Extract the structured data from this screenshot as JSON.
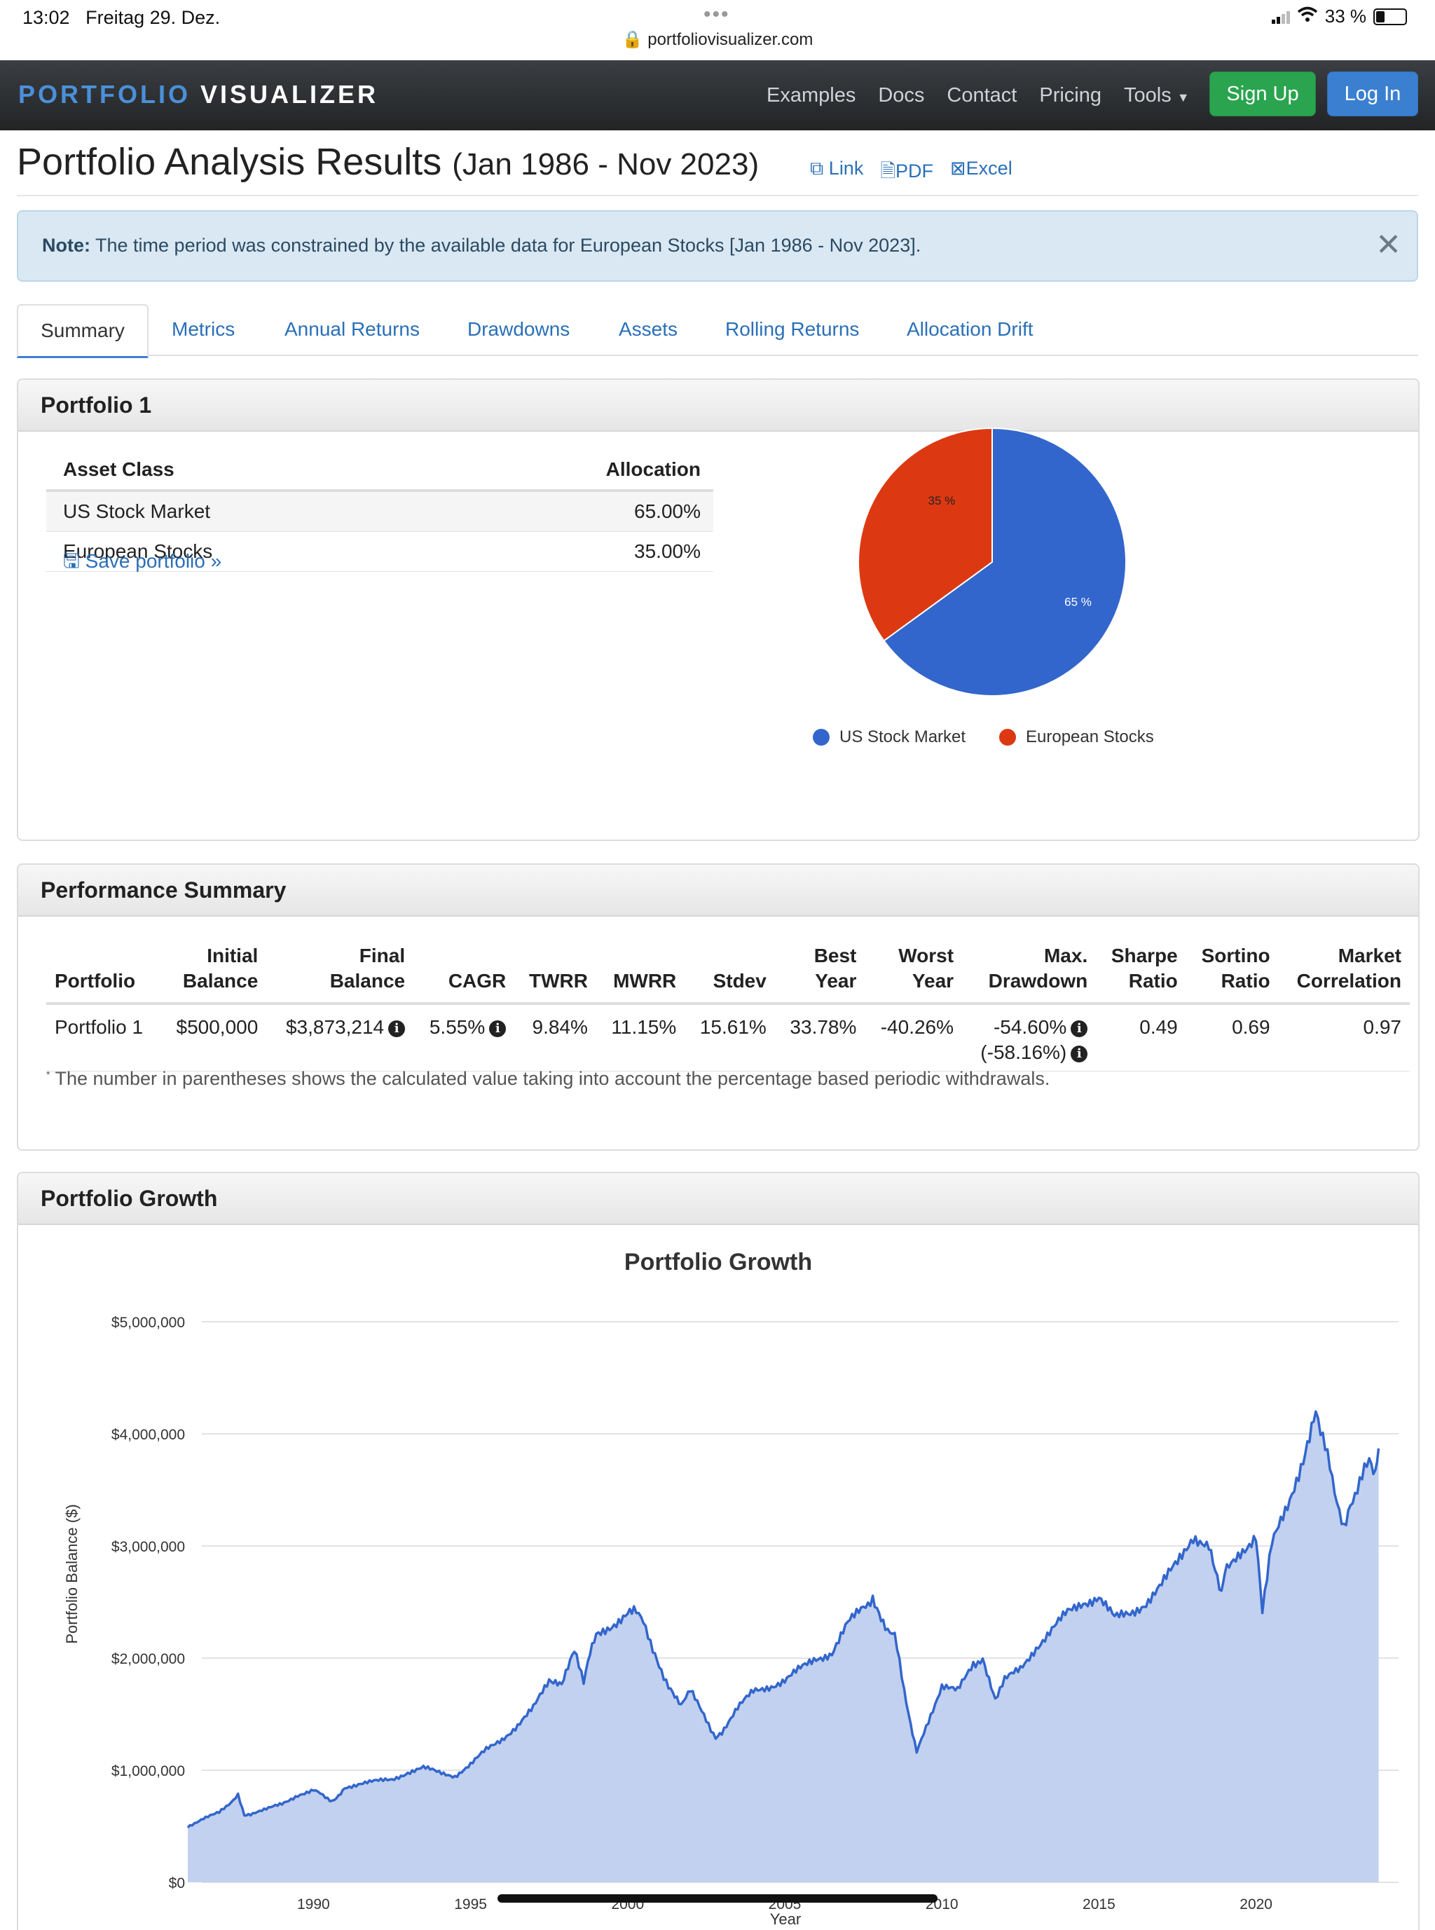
{
  "status": {
    "time": "13:02",
    "date": "Freitag 29. Dez.",
    "url": "portfoliovisualizer.com",
    "battery": "33 %"
  },
  "nav": {
    "brand_a": "PORTFOLIO",
    "brand_b": "VISUALIZER",
    "links": [
      "Examples",
      "Docs",
      "Contact",
      "Pricing",
      "Tools"
    ],
    "signup": "Sign Up",
    "login": "Log In"
  },
  "page": {
    "title": "Portfolio Analysis Results",
    "range": "(Jan 1986 - Nov 2023)",
    "links": [
      "Link",
      "PDF",
      "Excel"
    ]
  },
  "note": {
    "label": "Note:",
    "text": "The time period was constrained by the available data for European Stocks [Jan 1986 - Nov 2023]."
  },
  "tabs": [
    "Summary",
    "Metrics",
    "Annual Returns",
    "Drawdowns",
    "Assets",
    "Rolling Returns",
    "Allocation Drift"
  ],
  "portfolio": {
    "heading": "Portfolio 1",
    "col_asset": "Asset Class",
    "col_alloc": "Allocation",
    "rows": [
      {
        "asset": "US Stock Market",
        "alloc": "65.00%"
      },
      {
        "asset": "European Stocks",
        "alloc": "35.00%"
      }
    ],
    "save": "Save portfolio »",
    "pie": {
      "type": "pie",
      "slices": [
        {
          "label": "US Stock Market",
          "value": 65,
          "text": "65 %",
          "color": "#3366cc"
        },
        {
          "label": "European Stocks",
          "value": 35,
          "text": "35 %",
          "color": "#dc3912"
        }
      ]
    }
  },
  "performance": {
    "heading": "Performance Summary",
    "headers": [
      [
        "Portfolio"
      ],
      [
        "Initial",
        "Balance"
      ],
      [
        "Final",
        "Balance"
      ],
      [
        "CAGR"
      ],
      [
        "TWRR"
      ],
      [
        "MWRR"
      ],
      [
        "Stdev"
      ],
      [
        "Best",
        "Year"
      ],
      [
        "Worst",
        "Year"
      ],
      [
        "Max.",
        "Drawdown"
      ],
      [
        "Sharpe",
        "Ratio"
      ],
      [
        "Sortino",
        "Ratio"
      ],
      [
        "Market",
        "Correlation"
      ]
    ],
    "row": {
      "portfolio": "Portfolio 1",
      "initial": "$500,000",
      "final": "$3,873,214",
      "cagr": "5.55%",
      "twrr": "9.84%",
      "mwrr": "11.15%",
      "stdev": "15.61%",
      "best": "33.78%",
      "worst": "-40.26%",
      "maxdd": "-54.60%",
      "maxdd2": "(-58.16%)",
      "sharpe": "0.49",
      "sortino": "0.69",
      "corr": "0.97"
    },
    "footnote_mark": "*",
    "footnote": "The number in parentheses shows the calculated value taking into account the percentage based periodic withdrawals."
  },
  "growth": {
    "heading": "Portfolio Growth",
    "chart_data": {
      "type": "area",
      "title": "Portfolio Growth",
      "ylabel": "Portfolio Balance ($)",
      "xlabel": "Year",
      "ylim": [
        0,
        5000000
      ],
      "xlim": [
        1986.0,
        2024.0
      ],
      "yticks": [
        "$0",
        "$1,000,000",
        "$2,000,000",
        "$3,000,000",
        "$4,000,000",
        "$5,000,000"
      ],
      "xticks": [
        "1990",
        "1995",
        "2000",
        "2005",
        "2010",
        "2015",
        "2020"
      ],
      "color": "#3366cc",
      "fill": "#c2d1ef",
      "x": [
        1986.0,
        1986.5,
        1987.0,
        1987.6,
        1987.8,
        1988.0,
        1988.5,
        1989.0,
        1989.5,
        1990.0,
        1990.6,
        1990.8,
        1991.0,
        1991.5,
        1992.0,
        1992.5,
        1993.0,
        1993.5,
        1994.0,
        1994.5,
        1995.0,
        1995.5,
        1996.0,
        1996.5,
        1997.0,
        1997.5,
        1997.9,
        1998.3,
        1998.6,
        1998.8,
        1999.0,
        1999.5,
        2000.0,
        2000.2,
        2000.5,
        2000.8,
        2001.0,
        2001.3,
        2001.7,
        2002.0,
        2002.5,
        2002.8,
        2003.0,
        2003.5,
        2004.0,
        2004.5,
        2005.0,
        2005.5,
        2006.0,
        2006.5,
        2007.0,
        2007.5,
        2007.8,
        2008.2,
        2008.5,
        2008.8,
        2009.0,
        2009.2,
        2009.5,
        2010.0,
        2010.5,
        2011.0,
        2011.3,
        2011.7,
        2012.0,
        2012.5,
        2013.0,
        2013.5,
        2014.0,
        2014.5,
        2015.0,
        2015.5,
        2016.0,
        2016.5,
        2017.0,
        2017.5,
        2018.0,
        2018.5,
        2018.9,
        2019.0,
        2019.5,
        2020.0,
        2020.2,
        2020.5,
        2021.0,
        2021.5,
        2021.9,
        2022.2,
        2022.5,
        2022.8,
        2023.0,
        2023.3,
        2023.6,
        2023.8,
        2023.9
      ],
      "y": [
        500000,
        570000,
        620000,
        780000,
        600000,
        610000,
        650000,
        700000,
        780000,
        820000,
        730000,
        780000,
        850000,
        880000,
        900000,
        920000,
        980000,
        1020000,
        980000,
        950000,
        1050000,
        1180000,
        1280000,
        1400000,
        1550000,
        1800000,
        1750000,
        2050000,
        1800000,
        2050000,
        2200000,
        2300000,
        2400000,
        2450000,
        2300000,
        2100000,
        1950000,
        1750000,
        1600000,
        1700000,
        1450000,
        1300000,
        1350000,
        1550000,
        1700000,
        1750000,
        1800000,
        1900000,
        2000000,
        2050000,
        2300000,
        2450000,
        2550000,
        2300000,
        2200000,
        1700000,
        1400000,
        1150000,
        1400000,
        1750000,
        1700000,
        1950000,
        2000000,
        1650000,
        1800000,
        1900000,
        2100000,
        2250000,
        2400000,
        2500000,
        2550000,
        2350000,
        2400000,
        2500000,
        2650000,
        2850000,
        3100000,
        3000000,
        2600000,
        2750000,
        2950000,
        3100000,
        2450000,
        3000000,
        3350000,
        3800000,
        4250000,
        3900000,
        3450000,
        3200000,
        3400000,
        3550000,
        3750000,
        3600000,
        3870000
      ]
    }
  }
}
